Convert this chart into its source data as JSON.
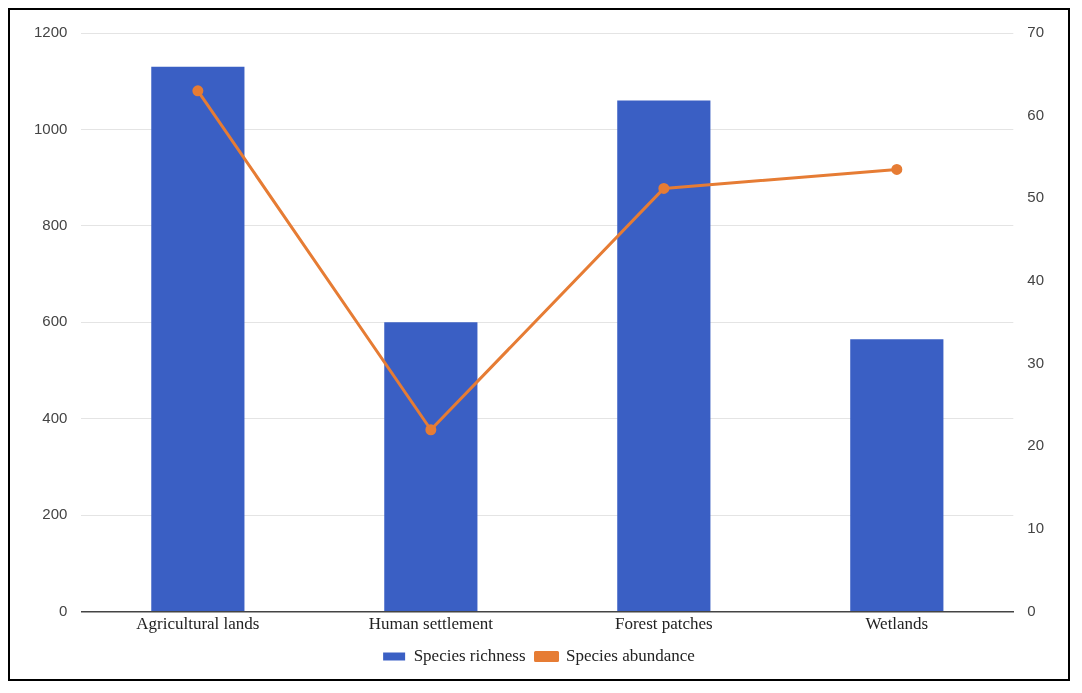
{
  "chart_data": {
    "type": "bar",
    "categories": [
      "Agricultural lands",
      "Human settlement",
      "Forest patches",
      "Wetlands"
    ],
    "series": [
      {
        "name": "Species richness",
        "color": "#3a5fc4",
        "values": [
          1130,
          600,
          1060,
          565
        ]
      },
      {
        "name": "Species abundance",
        "type": "line",
        "axis": "y2",
        "color": "#e67c34",
        "values": [
          63,
          22,
          51.2,
          53.5
        ]
      }
    ],
    "ylim": [
      0,
      1200
    ],
    "yticks": [
      0,
      200,
      400,
      600,
      800,
      1000,
      1200
    ],
    "y2lim": [
      0,
      70
    ],
    "y2ticks": [
      0,
      10,
      20,
      30,
      40,
      50,
      60,
      70
    ],
    "grid": "y",
    "legend": "bottom",
    "marker": "circle"
  }
}
